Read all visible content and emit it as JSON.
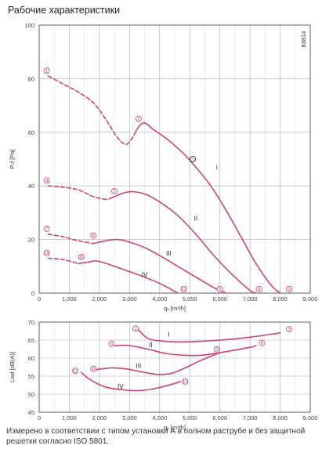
{
  "page": {
    "title": "Рабочие характеристики",
    "caption": "Измерено в соответствии с типом установки А в полном раструбе и без защитной решетки согласно ISO 5801."
  },
  "colors": {
    "curve": "#c8467a",
    "grid": "#aaaaaa",
    "axis": "#444444",
    "marker": "#c8467a"
  },
  "chart_data": [
    {
      "type": "line",
      "id_label": "83814",
      "xlabel": "qᵥ [m³/h]",
      "ylabel": "Pₛf [Pa]",
      "xlim": [
        0,
        9000
      ],
      "ylim": [
        0,
        100
      ],
      "x_ticks": [
        "0",
        "1,000",
        "2,000",
        "3,000",
        "4,000",
        "5,000",
        "6,000",
        "7,000",
        "8,000",
        "9,000"
      ],
      "y_ticks": [
        "0",
        "20",
        "40",
        "60",
        "80",
        "100"
      ],
      "grid": true,
      "series": [
        {
          "name": "I",
          "style": "dashed",
          "points": [
            [
              300,
              81
            ],
            [
              800,
              78
            ],
            [
              1300,
              75
            ],
            [
              1800,
              71
            ],
            [
              2200,
              65
            ],
            [
              2600,
              58
            ],
            [
              2900,
              55.5
            ],
            [
              3150,
              59
            ]
          ]
        },
        {
          "name": "I",
          "style": "solid",
          "points": [
            [
              3150,
              59
            ],
            [
              3300,
              62
            ],
            [
              3500,
              63.5
            ],
            [
              3800,
              61
            ],
            [
              4300,
              57
            ],
            [
              4800,
              52
            ],
            [
              5200,
              47
            ],
            [
              5700,
              40
            ],
            [
              6200,
              31
            ],
            [
              6700,
              21
            ],
            [
              7200,
              11
            ],
            [
              7700,
              3
            ],
            [
              8000,
              0
            ]
          ]
        },
        {
          "name": "II",
          "style": "dashed",
          "points": [
            [
              300,
              40
            ],
            [
              800,
              39.5
            ],
            [
              1300,
              38.5
            ],
            [
              1800,
              36
            ],
            [
              2200,
              35
            ],
            [
              2400,
              35.5
            ]
          ]
        },
        {
          "name": "II",
          "style": "solid",
          "points": [
            [
              2400,
              35.5
            ],
            [
              2600,
              36.5
            ],
            [
              3000,
              37.8
            ],
            [
              3500,
              37
            ],
            [
              4000,
              34
            ],
            [
              4600,
              29
            ],
            [
              5200,
              22
            ],
            [
              5800,
              14
            ],
            [
              6400,
              7
            ],
            [
              7000,
              1
            ],
            [
              7200,
              0
            ]
          ]
        },
        {
          "name": "III",
          "style": "dashed",
          "points": [
            [
              300,
              22
            ],
            [
              800,
              21
            ],
            [
              1300,
              19.5
            ],
            [
              1800,
              18.5
            ]
          ]
        },
        {
          "name": "III",
          "style": "solid",
          "points": [
            [
              1800,
              18.5
            ],
            [
              2200,
              19.5
            ],
            [
              2600,
              20
            ],
            [
              3000,
              19
            ],
            [
              3500,
              17
            ],
            [
              4000,
              14
            ],
            [
              4600,
              10
            ],
            [
              5200,
              6
            ],
            [
              5800,
              2
            ],
            [
              6200,
              0
            ]
          ]
        },
        {
          "name": "IV",
          "style": "dashed",
          "points": [
            [
              300,
              13
            ],
            [
              800,
              12.5
            ],
            [
              1300,
              11
            ]
          ]
        },
        {
          "name": "IV",
          "style": "solid",
          "points": [
            [
              1300,
              11
            ],
            [
              1600,
              11.5
            ],
            [
              1900,
              12
            ],
            [
              2300,
              10.8
            ],
            [
              2800,
              8.8
            ],
            [
              3300,
              6.8
            ],
            [
              3800,
              4.6
            ],
            [
              4200,
              2.5
            ],
            [
              4600,
              0
            ]
          ]
        }
      ],
      "region_labels": [
        {
          "text": "I",
          "x": 5900,
          "y": 46
        },
        {
          "text": "II",
          "x": 5200,
          "y": 27
        },
        {
          "text": "III",
          "x": 4300,
          "y": 14
        },
        {
          "text": "IV",
          "x": 3500,
          "y": 6
        }
      ],
      "markers": [
        {
          "text": "1",
          "x": 250,
          "y": 83
        },
        {
          "text": "2",
          "x": 3300,
          "y": 65
        },
        {
          "text": "n",
          "x": 5100,
          "y": 50
        },
        {
          "text": "4",
          "x": 250,
          "y": 42
        },
        {
          "text": "5",
          "x": 2500,
          "y": 38
        },
        {
          "text": "7",
          "x": 250,
          "y": 24
        },
        {
          "text": "8",
          "x": 1800,
          "y": 21.5
        },
        {
          "text": "10",
          "x": 250,
          "y": 15
        },
        {
          "text": "11",
          "x": 1400,
          "y": 13.5
        },
        {
          "text": "3",
          "x": 8300,
          "y": 1.5
        },
        {
          "text": "6",
          "x": 7300,
          "y": 1.5
        },
        {
          "text": "9",
          "x": 6000,
          "y": 1.5
        },
        {
          "text": "12",
          "x": 4800,
          "y": 1.5
        }
      ]
    },
    {
      "type": "line",
      "xlabel": "qᵥ [m³/h]",
      "ylabel": "Lwd [dB(A)]",
      "xlim": [
        0,
        9000
      ],
      "ylim": [
        45,
        70
      ],
      "x_ticks": [
        "0",
        "1,000",
        "2,000",
        "3,000",
        "4,000",
        "5,000",
        "6,000",
        "7,000",
        "8,000",
        "9,000"
      ],
      "y_ticks": [
        "45",
        "50",
        "55",
        "60",
        "65",
        "70"
      ],
      "grid": true,
      "series": [
        {
          "name": "I",
          "style": "solid",
          "points": [
            [
              3300,
              67.8
            ],
            [
              3600,
              65.5
            ],
            [
              4000,
              64.8
            ],
            [
              4600,
              64.5
            ],
            [
              5200,
              64.6
            ],
            [
              6000,
              65
            ],
            [
              7000,
              65.8
            ],
            [
              8000,
              67
            ]
          ]
        },
        {
          "name": "II",
          "style": "solid",
          "points": [
            [
              2500,
              63.5
            ],
            [
              3000,
              63.5
            ],
            [
              3600,
              62.5
            ],
            [
              4200,
              61.3
            ],
            [
              4800,
              60.8
            ],
            [
              5400,
              60.8
            ],
            [
              6000,
              61.5
            ],
            [
              7000,
              63
            ],
            [
              7200,
              63.5
            ]
          ]
        },
        {
          "name": "III",
          "style": "solid",
          "points": [
            [
              1900,
              56.8
            ],
            [
              2400,
              57.3
            ],
            [
              2900,
              57
            ],
            [
              3400,
              56.2
            ],
            [
              3900,
              55.5
            ],
            [
              4400,
              55.8
            ],
            [
              4900,
              57.5
            ],
            [
              5400,
              59.5
            ],
            [
              6000,
              61.5
            ]
          ]
        },
        {
          "name": "IV",
          "style": "solid",
          "points": [
            [
              1400,
              56
            ],
            [
              1700,
              54
            ],
            [
              2200,
              52
            ],
            [
              2800,
              51.2
            ],
            [
              3300,
              51
            ],
            [
              3800,
              51.5
            ],
            [
              4300,
              52.5
            ],
            [
              4700,
              53.5
            ]
          ]
        }
      ],
      "region_labels": [
        {
          "text": "I",
          "x": 4300,
          "y": 66
        },
        {
          "text": "II",
          "x": 3700,
          "y": 63
        },
        {
          "text": "III",
          "x": 3300,
          "y": 57.3
        },
        {
          "text": "IV",
          "x": 2700,
          "y": 51.5
        }
      ],
      "markers": [
        {
          "text": "2",
          "x": 3200,
          "y": 68.2
        },
        {
          "text": "3",
          "x": 8300,
          "y": 68
        },
        {
          "text": "5",
          "x": 2400,
          "y": 64
        },
        {
          "text": "6",
          "x": 7400,
          "y": 64.2
        },
        {
          "text": "8",
          "x": 1800,
          "y": 57
        },
        {
          "text": "9",
          "x": 5900,
          "y": 62.5
        },
        {
          "text": "11",
          "x": 1200,
          "y": 56.5
        },
        {
          "text": "12",
          "x": 4850,
          "y": 53.5
        }
      ]
    }
  ]
}
